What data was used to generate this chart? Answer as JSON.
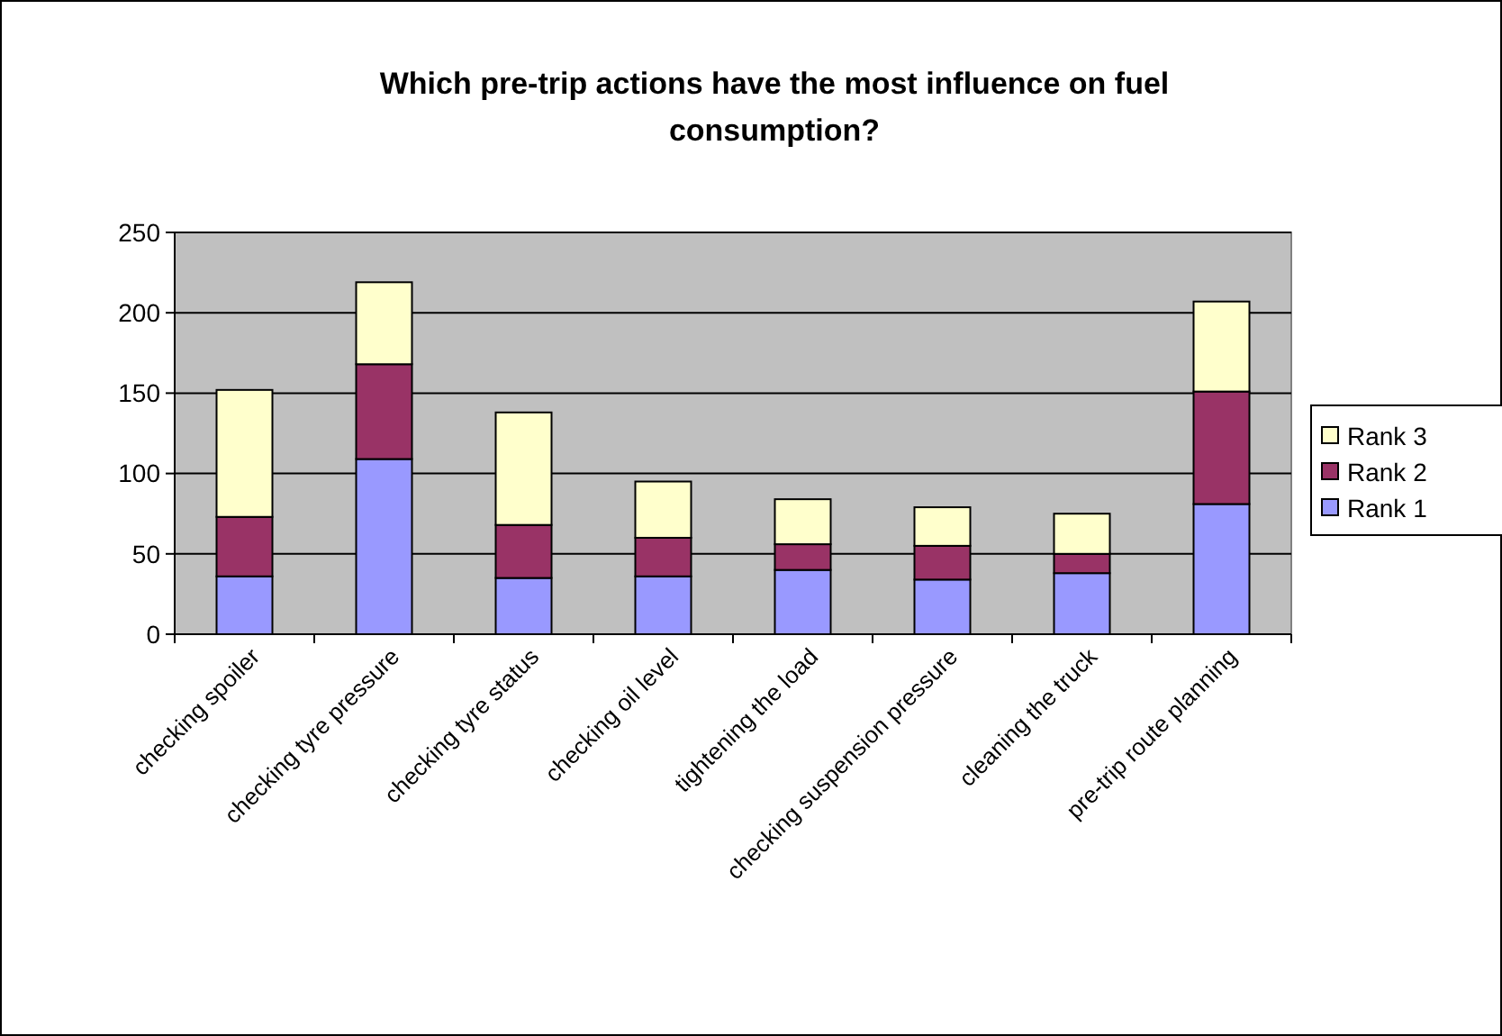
{
  "chart_data": {
    "type": "bar",
    "title": "Which pre-trip actions have the most influence on fuel consumption?",
    "categories": [
      "checking spoiler",
      "checking tyre pressure",
      "checking tyre status",
      "checking oil level",
      "tightening the load",
      "checking suspension pressure",
      "cleaning the truck",
      "pre-trip route planning"
    ],
    "stacked": true,
    "series": [
      {
        "name": "Rank 1",
        "color": "#9999ff",
        "values": [
          36,
          109,
          35,
          36,
          40,
          34,
          38,
          81
        ]
      },
      {
        "name": "Rank 2",
        "color": "#993366",
        "values": [
          37,
          59,
          33,
          24,
          16,
          21,
          12,
          70
        ]
      },
      {
        "name": "Rank 3",
        "color": "#ffffcc",
        "values": [
          79,
          51,
          70,
          35,
          28,
          24,
          25,
          56
        ]
      }
    ],
    "ylim": [
      0,
      250
    ],
    "yticks": [
      0,
      50,
      100,
      150,
      200,
      250
    ],
    "grid": "y",
    "legend": "right"
  }
}
